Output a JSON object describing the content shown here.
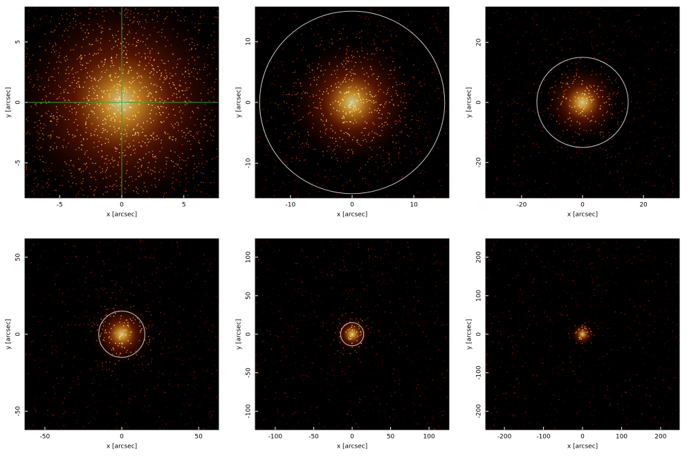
{
  "chart_data": [
    {
      "type": "image",
      "xlabel": "x [arcsec]",
      "ylabel": "y [arcsec]",
      "xlim": [
        -7.8,
        7.8
      ],
      "ylim": [
        -7.9,
        7.9
      ],
      "xticks": [
        -5,
        0,
        5
      ],
      "yticks": [
        -5,
        0,
        5
      ],
      "crosshair": [
        0,
        0
      ],
      "crosshair_color": "#22aa22"
    },
    {
      "type": "image",
      "xlabel": "x [arcsec]",
      "ylabel": "y [arcsec]",
      "xlim": [
        -15.7,
        15.7
      ],
      "ylim": [
        -15.7,
        15.7
      ],
      "xticks": [
        -10,
        0,
        10
      ],
      "yticks": [
        -10,
        0,
        10
      ],
      "circle_radius": 15,
      "circle_color": "#cccccc"
    },
    {
      "type": "image",
      "xlabel": "x [arcsec]",
      "ylabel": "y [arcsec]",
      "xlim": [
        -31.8,
        31.8
      ],
      "ylim": [
        -31.8,
        31.8
      ],
      "xticks": [
        -20,
        0,
        20
      ],
      "yticks": [
        -20,
        0,
        20
      ],
      "circle_radius": 15,
      "circle_color": "#cccccc"
    },
    {
      "type": "image",
      "xlabel": "x [arcsec]",
      "ylabel": "y [arcsec]",
      "xlim": [
        -63,
        63
      ],
      "ylim": [
        -62,
        62
      ],
      "xticks": [
        -50,
        0,
        50
      ],
      "yticks": [
        -50,
        0,
        50
      ],
      "circle_radius": 15,
      "circle_color": "#cccccc"
    },
    {
      "type": "image",
      "xlabel": "x [arcsec]",
      "ylabel": "y [arcsec]",
      "xlim": [
        -126,
        126
      ],
      "ylim": [
        -124,
        124
      ],
      "xticks": [
        -100,
        -50,
        0,
        50,
        100
      ],
      "yticks": [
        -100,
        -50,
        0,
        50,
        100
      ],
      "circle_radius": 15,
      "circle_color": "#cccccc"
    },
    {
      "type": "image",
      "xlabel": "x [arcsec]",
      "ylabel": "y [arcsec]",
      "xlim": [
        -248,
        248
      ],
      "ylim": [
        -248,
        248
      ],
      "xticks": [
        -200,
        -100,
        0,
        100,
        200
      ],
      "yticks": [
        -200,
        -100,
        0,
        100,
        200
      ]
    }
  ]
}
